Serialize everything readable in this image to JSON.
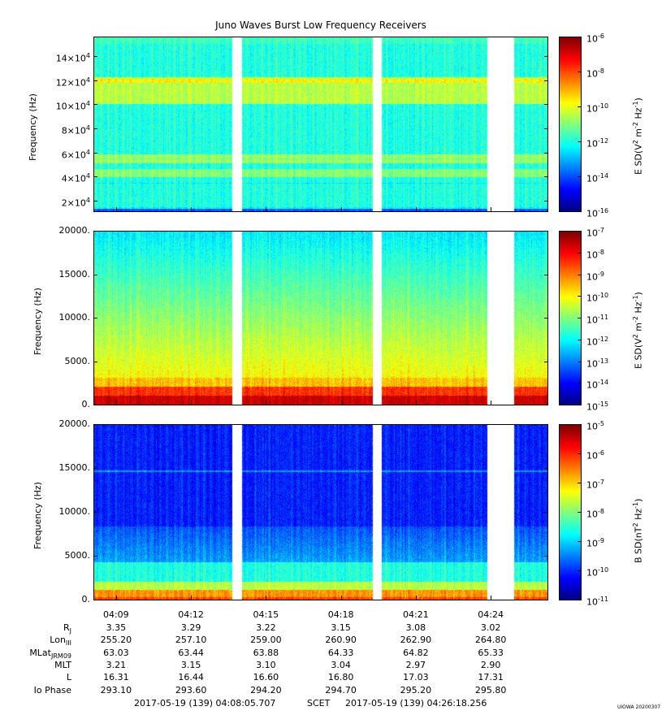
{
  "figure": {
    "title": "Juno Waves Burst Low Frequency Receivers",
    "footer_start": "2017-05-19 (139) 04:08:05.707",
    "footer_frame": "SCET",
    "footer_end": "2017-05-19 (139) 04:26:18.256",
    "credit": "UIOWA 20200307"
  },
  "chart_data": {
    "type": "heatmap",
    "time_axis": {
      "start": "04:08:05.707",
      "end": "04:26:18.256",
      "tick_labels": [
        "04:09",
        "04:12",
        "04:15",
        "04:18",
        "04:21",
        "04:24"
      ],
      "data_gaps": [
        [
          "04:13:38",
          "04:14:02"
        ],
        [
          "04:19:16",
          "04:19:38"
        ],
        [
          "04:23:50",
          "04:24:56"
        ]
      ]
    },
    "ephemeris": [
      {
        "name": "R",
        "sub": "J",
        "values": [
          "3.35",
          "3.29",
          "3.22",
          "3.15",
          "3.08",
          "3.02"
        ]
      },
      {
        "name": "Lon",
        "sub": "III",
        "values": [
          "255.20",
          "257.10",
          "259.00",
          "260.90",
          "262.90",
          "264.80"
        ]
      },
      {
        "name": "MLat",
        "sub": "JRM09",
        "values": [
          "63.03",
          "63.44",
          "63.88",
          "64.33",
          "64.82",
          "65.33"
        ]
      },
      {
        "name": "MLT",
        "sub": "",
        "values": [
          "3.21",
          "3.15",
          "3.10",
          "3.04",
          "2.97",
          "2.90"
        ]
      },
      {
        "name": "L",
        "sub": "",
        "values": [
          "16.31",
          "16.44",
          "16.60",
          "16.80",
          "17.03",
          "17.31"
        ]
      },
      {
        "name": "Io Phase",
        "sub": "",
        "values": [
          "293.10",
          "293.60",
          "294.20",
          "294.70",
          "295.20",
          "295.80"
        ]
      }
    ],
    "panels": [
      {
        "ylabel": "Frequency (Hz)",
        "y_ticks": [
          {
            "mant": "2×10",
            "exp": "4"
          },
          {
            "mant": "4×10",
            "exp": "4"
          },
          {
            "mant": "6×10",
            "exp": "4"
          },
          {
            "mant": "8×10",
            "exp": "4"
          },
          {
            "mant": "10×10",
            "exp": "4"
          },
          {
            "mant": "12×10",
            "exp": "4"
          },
          {
            "mant": "14×10",
            "exp": "4"
          }
        ],
        "colorbar_label_prefix": "E SD(V",
        "colorbar_label_mid": " m",
        "colorbar_label_mid2": " Hz",
        "colorbar_label_suffix": ")",
        "colorbar_exponents": [
          "-6",
          "-8",
          "-10",
          "-12",
          "-14",
          "-16"
        ],
        "scale": "log"
      },
      {
        "ylabel": "Frequency (Hz)",
        "y_ticks": [
          {
            "label": "20000."
          },
          {
            "label": "15000."
          },
          {
            "label": "10000."
          },
          {
            "label": "5000."
          },
          {
            "label": "0."
          }
        ],
        "colorbar_label_prefix": "E SD(V",
        "colorbar_label_mid": " m",
        "colorbar_label_mid2": " Hz",
        "colorbar_label_suffix": ")",
        "colorbar_exponents": [
          "-7",
          "-8",
          "-9",
          "-10",
          "-11",
          "-12",
          "-13",
          "-14",
          "-15"
        ],
        "scale": "log"
      },
      {
        "ylabel": "Frequency (Hz)",
        "y_ticks": [
          {
            "label": "20000."
          },
          {
            "label": "15000."
          },
          {
            "label": "10000."
          },
          {
            "label": "5000."
          },
          {
            "label": "0."
          }
        ],
        "colorbar_label_prefix": "B SD(nT",
        "colorbar_label_mid": " Hz",
        "colorbar_label_mid2": "",
        "colorbar_label_suffix": ")",
        "colorbar_exponents": [
          "-5",
          "-6",
          "-7",
          "-8",
          "-9",
          "-10",
          "-11"
        ],
        "scale": "log"
      }
    ]
  }
}
